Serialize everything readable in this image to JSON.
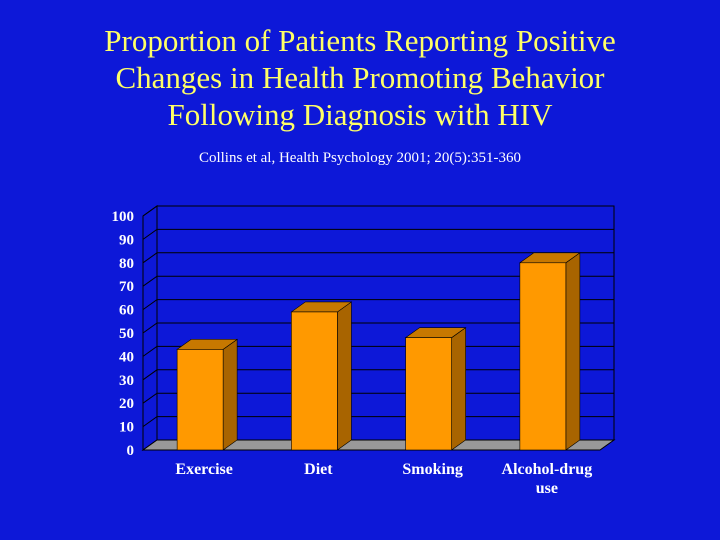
{
  "slide": {
    "title": "Proportion of Patients Reporting Positive\nChanges in Health Promoting Behavior\nFollowing Diagnosis with HIV",
    "subtitle": "Collins et al, Health Psychology 2001; 20(5):351-360"
  },
  "colors": {
    "background": "#0d18d8",
    "title": "#ffff66",
    "bar_front": "#ff9900",
    "bar_top": "#c77800",
    "bar_side": "#a86400",
    "floor": "#999999",
    "gridline": "#000000"
  },
  "chart_data": {
    "type": "bar",
    "style": "3d",
    "categories": [
      "Exercise",
      "Diet",
      "Smoking",
      "Alcohol-drug use"
    ],
    "category_label_lines": [
      [
        "Exercise"
      ],
      [
        "Diet"
      ],
      [
        "Smoking"
      ],
      [
        "Alcohol-drug",
        "use"
      ]
    ],
    "values": [
      43,
      59,
      48,
      80
    ],
    "ylim": [
      0,
      100
    ],
    "yticks": [
      0,
      10,
      20,
      30,
      40,
      50,
      60,
      70,
      80,
      90,
      100
    ],
    "grid": true,
    "legend": "none",
    "xlabel": "",
    "ylabel": ""
  }
}
